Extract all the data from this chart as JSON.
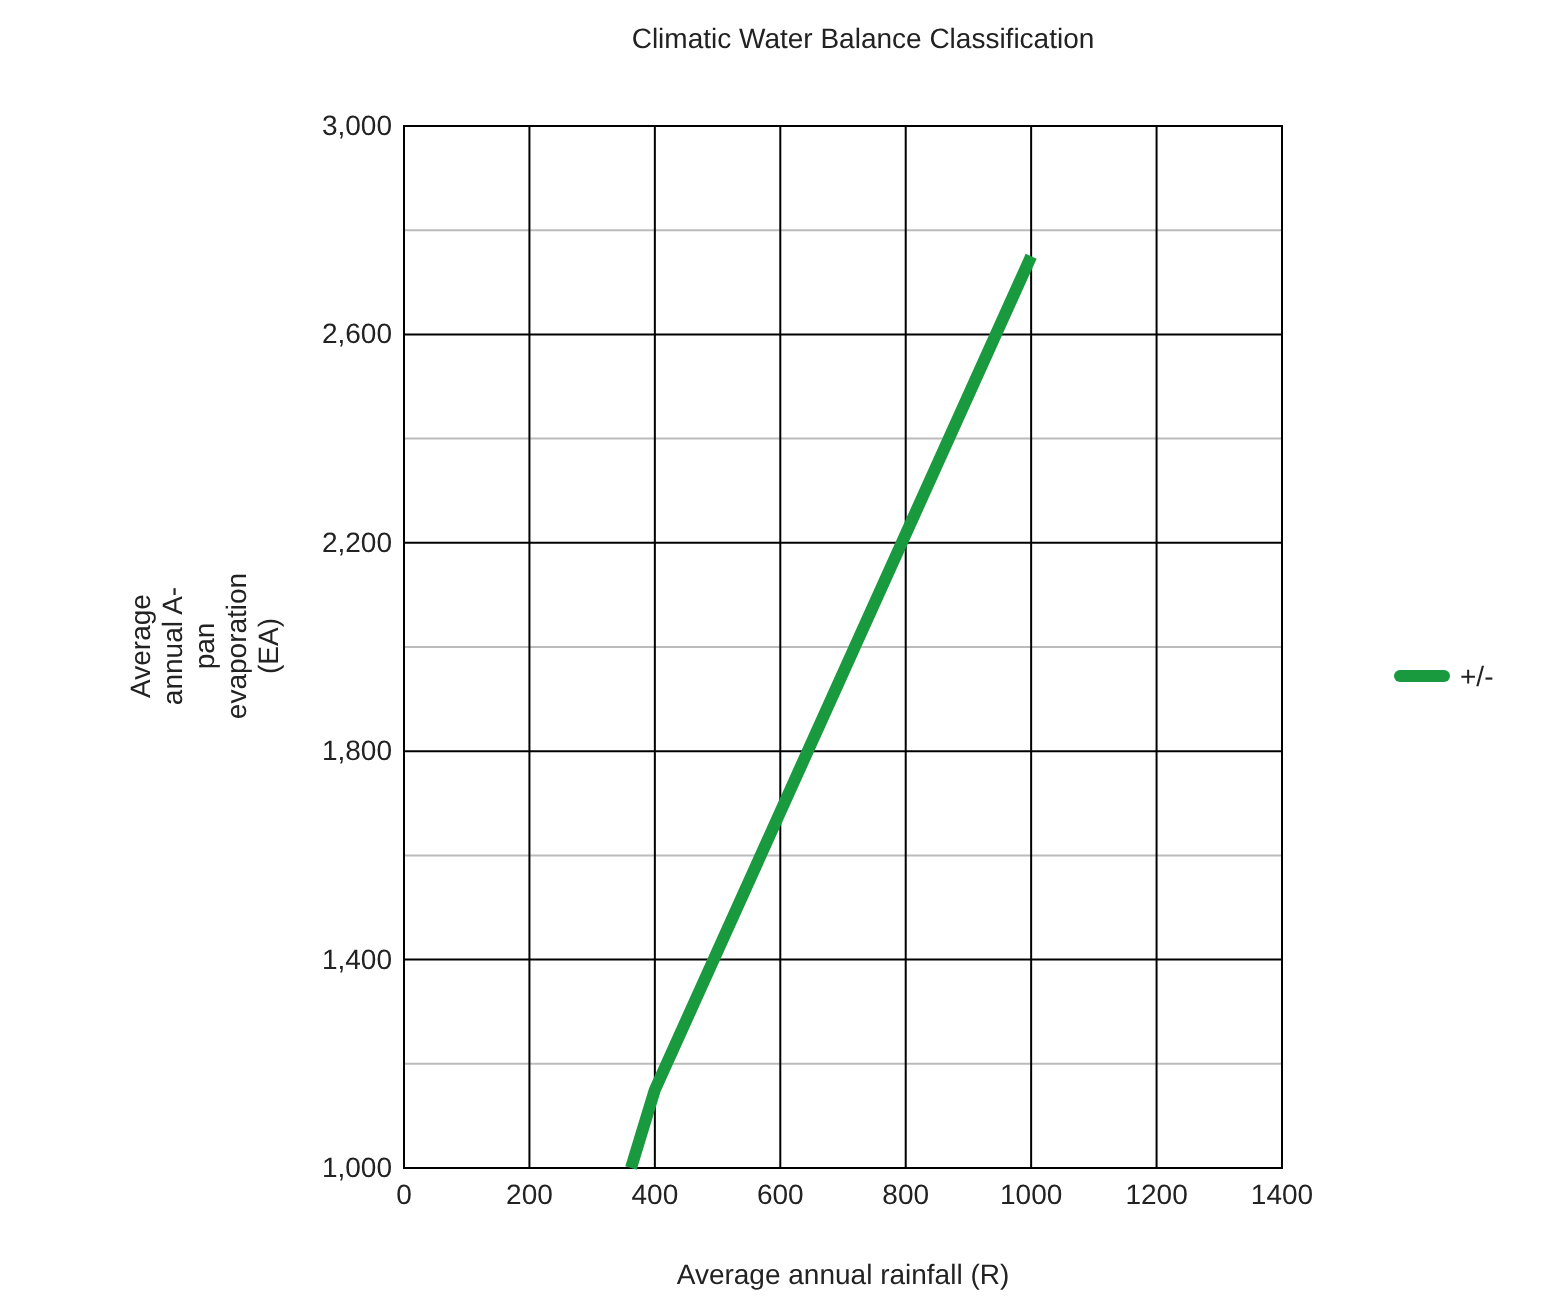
{
  "chart_data": {
    "type": "line",
    "title": "Climatic Water Balance Classification",
    "xlabel": "Average annual rainfall (R)",
    "ylabel": "Average annual A-pan evaporation (EA)",
    "xlim": [
      0,
      1400
    ],
    "xticks": [
      0,
      200,
      400,
      600,
      800,
      1000,
      1200,
      1400
    ],
    "ylim": [
      1000,
      3000
    ],
    "yticks": [
      {
        "value": 1000,
        "label": "1,000"
      },
      {
        "value": 1200,
        "label": null
      },
      {
        "value": 1400,
        "label": "1,400"
      },
      {
        "value": 1600,
        "label": null
      },
      {
        "value": 1800,
        "label": "1,800"
      },
      {
        "value": 2000,
        "label": null
      },
      {
        "value": 2200,
        "label": "2,200"
      },
      {
        "value": 2400,
        "label": null
      },
      {
        "value": 2600,
        "label": "2,600"
      },
      {
        "value": 2800,
        "label": null
      },
      {
        "value": 3000,
        "label": "3,000"
      }
    ],
    "series": [
      {
        "name": "+/-",
        "color": "#1a9a3e",
        "x": [
          362,
          400,
          1000
        ],
        "values": [
          1000,
          1150,
          2750
        ]
      }
    ],
    "grid": true,
    "legend": "right",
    "marker": "none",
    "line_style": "solid"
  }
}
